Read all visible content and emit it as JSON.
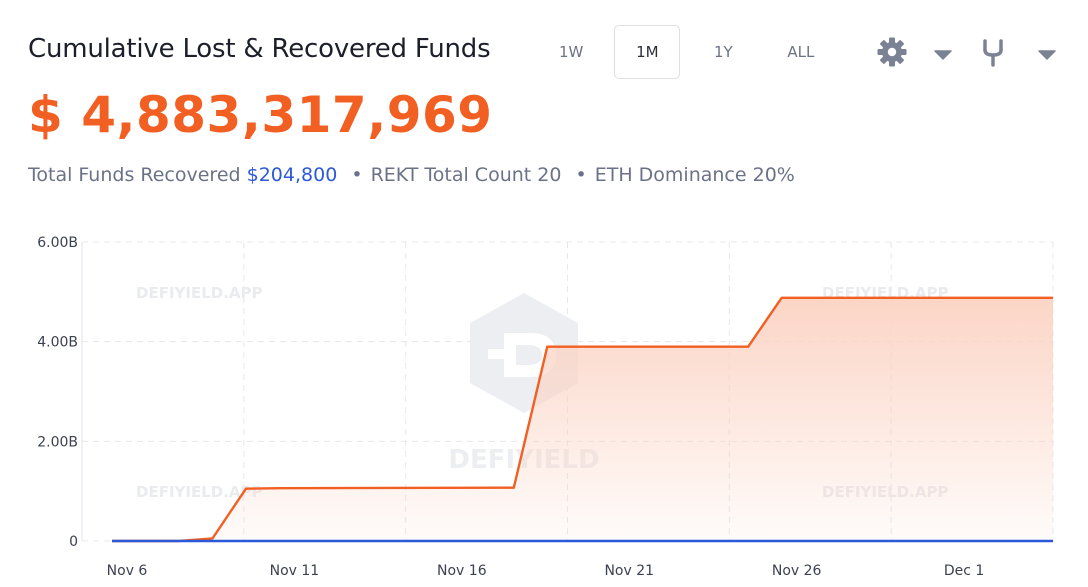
{
  "header": {
    "title": "Cumulative Lost & Recovered Funds",
    "range_tabs": [
      {
        "label": "1W",
        "active": false
      },
      {
        "label": "1M",
        "active": true
      },
      {
        "label": "1Y",
        "active": false
      },
      {
        "label": "ALL",
        "active": false
      }
    ],
    "tools": [
      "gear-icon",
      "caret-down-icon",
      "fork-icon",
      "caret-down-icon"
    ]
  },
  "summary": {
    "total_value": "$ 4,883,317,969",
    "recovered_label": "Total Funds Recovered",
    "recovered_value": "$204,800",
    "rekt_label": "REKT Total Count 20",
    "eth_label": "ETH Dominance 20%",
    "separator": "•"
  },
  "watermark": {
    "small": "DEFIYIELD.APP",
    "big": "DEFIYIELD"
  },
  "colors": {
    "accent": "#f25f22",
    "recovered": "#2b59d9",
    "fill_top": "#fbd3c3"
  },
  "chart_data": {
    "type": "area",
    "x_tick_labels": [
      "Nov 6",
      "Nov 11",
      "Nov 16",
      "Nov 21",
      "Nov 26",
      "Dec 1"
    ],
    "y_tick_labels": [
      "0",
      "2.00B",
      "4.00B",
      "6.00B"
    ],
    "y_ticks": [
      0,
      2000000000,
      4000000000,
      6000000000
    ],
    "ylim": [
      0,
      6000000000
    ],
    "xlim": [
      "2022-11-06",
      "2022-12-05"
    ],
    "grid": true,
    "series": [
      {
        "color": "#f25f22",
        "fill": true,
        "points": [
          {
            "x": "2022-11-06",
            "y": 0
          },
          {
            "x": "2022-11-08",
            "y": 0
          },
          {
            "x": "2022-11-09",
            "y": 50000000
          },
          {
            "x": "2022-11-10",
            "y": 1050000000
          },
          {
            "x": "2022-11-11",
            "y": 1060000000
          },
          {
            "x": "2022-11-18",
            "y": 1070000000
          },
          {
            "x": "2022-11-19",
            "y": 3900000000
          },
          {
            "x": "2022-11-25",
            "y": 3900000000
          },
          {
            "x": "2022-11-26",
            "y": 4880000000
          },
          {
            "x": "2022-12-05",
            "y": 4880000000
          }
        ]
      },
      {
        "color": "#2b59d9",
        "fill": false,
        "points": [
          {
            "x": "2022-11-06",
            "y": 0
          },
          {
            "x": "2022-11-09",
            "y": 0
          },
          {
            "x": "2022-11-10",
            "y": 204800
          },
          {
            "x": "2022-12-05",
            "y": 204800
          }
        ]
      }
    ]
  }
}
